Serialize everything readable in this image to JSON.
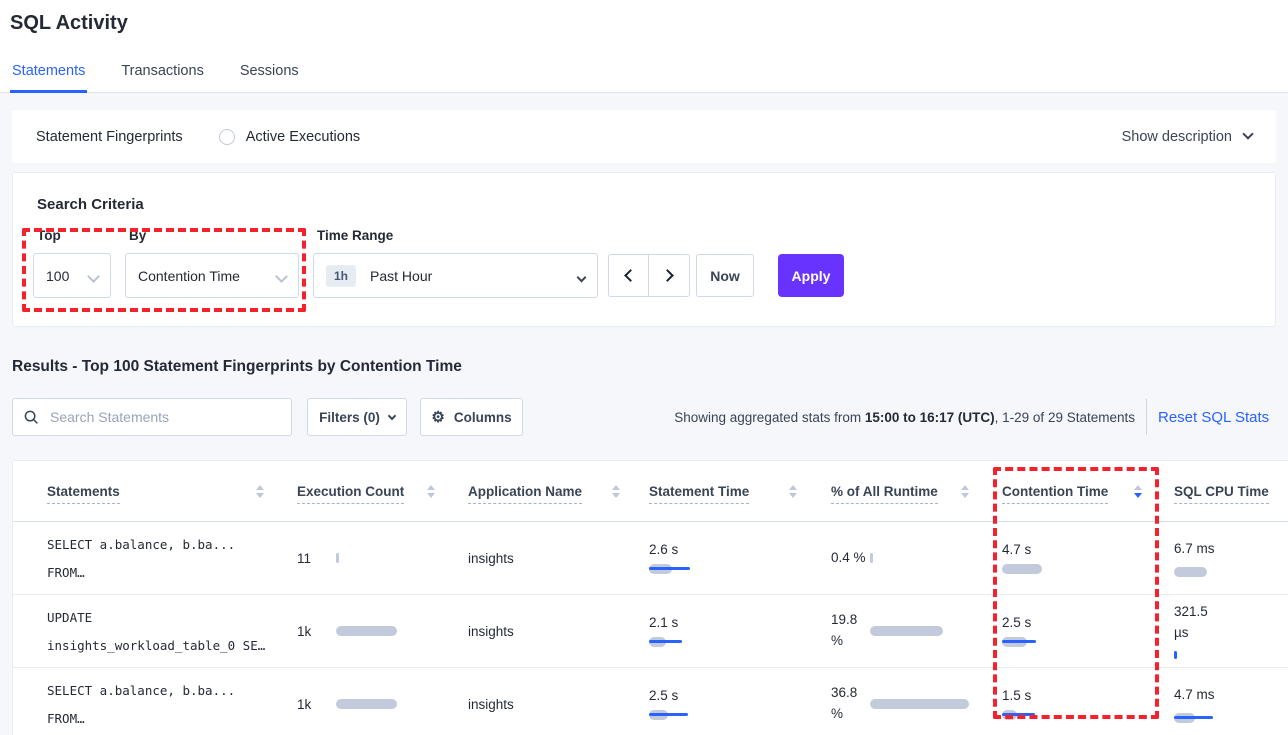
{
  "header": {
    "title": "SQL Activity",
    "tabs": [
      {
        "label": "Statements",
        "active": true
      },
      {
        "label": "Transactions",
        "active": false
      },
      {
        "label": "Sessions",
        "active": false
      }
    ]
  },
  "view_bar": {
    "radios": [
      {
        "label": "Statement Fingerprints",
        "selected": true
      },
      {
        "label": "Active Executions",
        "selected": false
      }
    ],
    "show_description": "Show description"
  },
  "criteria": {
    "heading": "Search Criteria",
    "top_label": "Top",
    "top_value": "100",
    "by_label": "By",
    "by_value": "Contention Time",
    "time_label": "Time Range",
    "time_badge": "1h",
    "time_value": "Past Hour",
    "now_button": "Now",
    "apply_button": "Apply"
  },
  "results": {
    "heading": "Results - Top 100 Statement Fingerprints by Contention Time",
    "search_placeholder": "Search Statements",
    "filters_button": "Filters (0)",
    "columns_button": "Columns",
    "showing_prefix": "Showing aggregated stats from ",
    "showing_bold": "15:00 to 16:17 (UTC)",
    "showing_suffix": ", 1-29 of 29 Statements",
    "reset_link": "Reset SQL Stats"
  },
  "table": {
    "headers": [
      "Statements",
      "Execution Count",
      "Application Name",
      "Statement Time",
      "% of All Runtime",
      "Contention Time",
      "SQL CPU Time"
    ],
    "sort": {
      "column": "Contention Time",
      "direction": "desc"
    },
    "rows": [
      {
        "stmt1": "SELECT a.balance, b.ba...",
        "stmt2": "FROM…",
        "exec": {
          "value": "11",
          "bar": {
            "gray": 3,
            "blue": 0
          }
        },
        "app": "insights",
        "time": {
          "value": "2.6 s",
          "bar": {
            "gray": 23,
            "blue": 41
          }
        },
        "pct": {
          "value": "0.4 %",
          "bar": {
            "gray": 3,
            "blue": 0
          }
        },
        "contention": {
          "value": "4.7 s",
          "bar": {
            "gray": 40,
            "blue": 0
          }
        },
        "cpu": {
          "value": "6.7 ms",
          "bar": {
            "gray": 33,
            "blue": 0
          }
        }
      },
      {
        "stmt1": "UPDATE",
        "stmt2": "insights_workload_table_0 SE…",
        "exec": {
          "value": "1k",
          "bar": {
            "gray": 61,
            "blue": 0
          }
        },
        "app": "insights",
        "time": {
          "value": "2.1 s",
          "bar": {
            "gray": 17,
            "blue": 33
          }
        },
        "pct": {
          "value": "19.8 %",
          "bar": {
            "gray": 73,
            "blue": 0
          }
        },
        "contention": {
          "value": "2.5 s",
          "bar": {
            "gray": 25,
            "blue": 34
          }
        },
        "cpu": {
          "value": "321.5 µs",
          "bar": {
            "gray": 0,
            "blue": 3
          }
        }
      },
      {
        "stmt1": "SELECT a.balance, b.ba...",
        "stmt2": "FROM…",
        "exec": {
          "value": "1k",
          "bar": {
            "gray": 61,
            "blue": 0
          }
        },
        "app": "insights",
        "time": {
          "value": "2.5 s",
          "bar": {
            "gray": 19,
            "blue": 39
          }
        },
        "pct": {
          "value": "36.8 %",
          "bar": {
            "gray": 99,
            "blue": 0
          }
        },
        "contention": {
          "value": "1.5 s",
          "bar": {
            "gray": 15,
            "blue": 33
          }
        },
        "cpu": {
          "value": "4.7 ms",
          "bar": {
            "gray": 21,
            "blue": 39
          }
        }
      }
    ]
  },
  "icons": {
    "search": "magnifier-icon",
    "gear": "gear-icon",
    "chevron_down": "chevron-down-icon",
    "prev": "chevron-left-icon",
    "next": "chevron-right-icon",
    "sort": "sort-arrows-icon"
  },
  "colors": {
    "accent_blue": "#2962ff",
    "apply_purple": "#6933ff",
    "bar_gray": "#c3cadc",
    "bar_blue": "#2962ff",
    "annotation_red": "#f5222d"
  }
}
